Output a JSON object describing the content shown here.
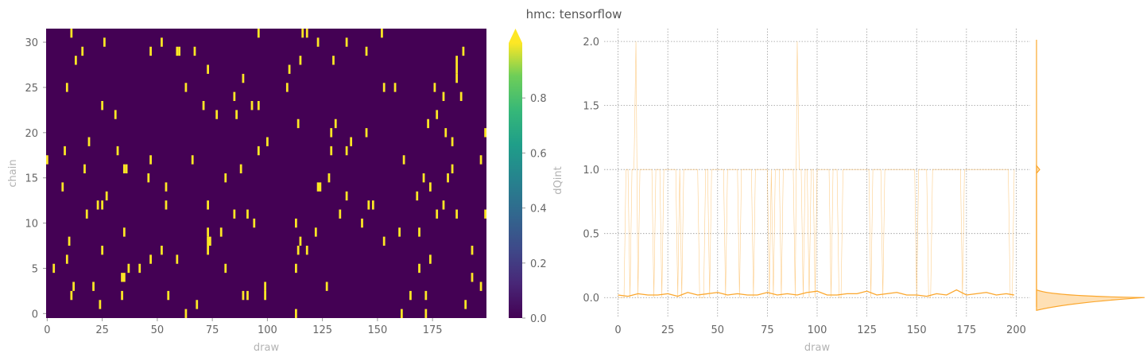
{
  "title": "hmc: tensorflow",
  "colors": {
    "viridis_low": "#440154",
    "viridis_high": "#fde725",
    "trace": "#fba62b",
    "grid": "#999999"
  },
  "chart_data": [
    {
      "type": "heatmap",
      "xlabel": "draw",
      "ylabel": "chain",
      "x_range": [
        0,
        199
      ],
      "y_range": [
        0,
        31
      ],
      "xticks": [
        "0",
        "25",
        "50",
        "75",
        "100",
        "125",
        "150",
        "175"
      ],
      "yticks": [
        "0",
        "5",
        "10",
        "15",
        "20",
        "25",
        "30"
      ],
      "colorbar": {
        "label": "dQint",
        "min": 0.0,
        "max": 1.0,
        "ticks": [
          "0.0",
          "0.2",
          "0.4",
          "0.6",
          "0.8"
        ],
        "extend": "max"
      },
      "hot_cells": [
        [
          11,
          31
        ],
        [
          96,
          31
        ],
        [
          116,
          31
        ],
        [
          118,
          31
        ],
        [
          152,
          31
        ],
        [
          26,
          30
        ],
        [
          52,
          30
        ],
        [
          123,
          30
        ],
        [
          136,
          30
        ],
        [
          16,
          29
        ],
        [
          47,
          29
        ],
        [
          59,
          29
        ],
        [
          60,
          29
        ],
        [
          67,
          29
        ],
        [
          145,
          29
        ],
        [
          189,
          29
        ],
        [
          13,
          28
        ],
        [
          115,
          28
        ],
        [
          130,
          28
        ],
        [
          186,
          28
        ],
        [
          73,
          27
        ],
        [
          110,
          27
        ],
        [
          186,
          27
        ],
        [
          89,
          26
        ],
        [
          186,
          26
        ],
        [
          9,
          25
        ],
        [
          63,
          25
        ],
        [
          109,
          25
        ],
        [
          153,
          25
        ],
        [
          158,
          25
        ],
        [
          176,
          25
        ],
        [
          85,
          24
        ],
        [
          180,
          24
        ],
        [
          188,
          24
        ],
        [
          25,
          23
        ],
        [
          71,
          23
        ],
        [
          93,
          23
        ],
        [
          96,
          23
        ],
        [
          31,
          22
        ],
        [
          77,
          22
        ],
        [
          86,
          22
        ],
        [
          177,
          22
        ],
        [
          114,
          21
        ],
        [
          131,
          21
        ],
        [
          173,
          21
        ],
        [
          129,
          20
        ],
        [
          145,
          20
        ],
        [
          181,
          20
        ],
        [
          199,
          20
        ],
        [
          19,
          19
        ],
        [
          100,
          19
        ],
        [
          138,
          19
        ],
        [
          184,
          19
        ],
        [
          8,
          18
        ],
        [
          32,
          18
        ],
        [
          96,
          18
        ],
        [
          129,
          18
        ],
        [
          136,
          18
        ],
        [
          0,
          17
        ],
        [
          47,
          17
        ],
        [
          66,
          17
        ],
        [
          162,
          17
        ],
        [
          197,
          17
        ],
        [
          17,
          16
        ],
        [
          35,
          16
        ],
        [
          36,
          16
        ],
        [
          88,
          16
        ],
        [
          184,
          16
        ],
        [
          46,
          15
        ],
        [
          81,
          15
        ],
        [
          128,
          15
        ],
        [
          171,
          15
        ],
        [
          182,
          15
        ],
        [
          7,
          14
        ],
        [
          54,
          14
        ],
        [
          123,
          14
        ],
        [
          124,
          14
        ],
        [
          174,
          14
        ],
        [
          27,
          13
        ],
        [
          136,
          13
        ],
        [
          168,
          13
        ],
        [
          23,
          12
        ],
        [
          25,
          12
        ],
        [
          54,
          12
        ],
        [
          73,
          12
        ],
        [
          146,
          12
        ],
        [
          148,
          12
        ],
        [
          180,
          12
        ],
        [
          18,
          11
        ],
        [
          85,
          11
        ],
        [
          91,
          11
        ],
        [
          133,
          11
        ],
        [
          177,
          11
        ],
        [
          186,
          11
        ],
        [
          199,
          11
        ],
        [
          94,
          10
        ],
        [
          113,
          10
        ],
        [
          143,
          10
        ],
        [
          35,
          9
        ],
        [
          73,
          9
        ],
        [
          79,
          9
        ],
        [
          122,
          9
        ],
        [
          160,
          9
        ],
        [
          169,
          9
        ],
        [
          10,
          8
        ],
        [
          73,
          8
        ],
        [
          74,
          8
        ],
        [
          115,
          8
        ],
        [
          153,
          8
        ],
        [
          25,
          7
        ],
        [
          52,
          7
        ],
        [
          73,
          7
        ],
        [
          114,
          7
        ],
        [
          118,
          7
        ],
        [
          193,
          7
        ],
        [
          9,
          6
        ],
        [
          47,
          6
        ],
        [
          59,
          6
        ],
        [
          174,
          6
        ],
        [
          3,
          5
        ],
        [
          37,
          5
        ],
        [
          42,
          5
        ],
        [
          81,
          5
        ],
        [
          113,
          5
        ],
        [
          169,
          5
        ],
        [
          34,
          4
        ],
        [
          35,
          4
        ],
        [
          193,
          4
        ],
        [
          12,
          3
        ],
        [
          21,
          3
        ],
        [
          99,
          3
        ],
        [
          127,
          3
        ],
        [
          197,
          3
        ],
        [
          11,
          2
        ],
        [
          34,
          2
        ],
        [
          55,
          2
        ],
        [
          89,
          2
        ],
        [
          91,
          2
        ],
        [
          99,
          2
        ],
        [
          165,
          2
        ],
        [
          172,
          2
        ],
        [
          24,
          1
        ],
        [
          68,
          1
        ],
        [
          190,
          1
        ],
        [
          63,
          0
        ],
        [
          113,
          0
        ],
        [
          161,
          0
        ],
        [
          172,
          0
        ]
      ]
    },
    {
      "type": "line",
      "xlabel": "draw",
      "ylabel": "",
      "xlim": [
        -7,
        207
      ],
      "ylim": [
        -0.16,
        2.1
      ],
      "xticks": [
        "0",
        "25",
        "50",
        "75",
        "100",
        "125",
        "150",
        "175",
        "200"
      ],
      "yticks": [
        "0.0",
        "0.5",
        "1.0",
        "1.5",
        "2.0"
      ],
      "grid": true,
      "series": [
        {
          "style": "thin-transparent",
          "spikes_to_one": [
            4,
            5,
            7,
            8,
            9,
            11,
            12,
            13,
            14,
            15,
            16,
            17,
            19,
            20,
            21,
            23,
            24,
            25,
            26,
            27,
            28,
            29,
            31,
            33,
            34,
            35,
            36,
            37,
            38,
            39,
            40,
            44,
            45,
            47,
            48,
            49,
            50,
            51,
            52,
            53,
            55,
            56,
            57,
            58,
            59,
            60,
            62,
            63,
            64,
            65,
            66,
            67,
            69,
            70,
            71,
            72,
            73,
            74,
            75,
            77,
            79,
            80,
            81,
            83,
            84,
            85,
            86,
            87,
            88,
            91,
            92,
            94,
            95,
            97,
            98,
            100,
            101,
            102,
            103,
            104,
            105,
            106,
            108,
            109,
            110,
            113,
            114,
            115,
            116,
            117,
            118,
            119,
            120,
            121,
            122,
            123,
            124,
            125,
            126,
            128,
            129,
            130,
            131,
            132,
            134,
            135,
            136,
            137,
            138,
            139,
            140,
            141,
            142,
            143,
            144,
            145,
            146,
            147,
            148,
            149,
            151,
            152,
            153,
            154,
            155,
            158,
            159,
            160,
            161,
            162,
            163,
            164,
            165,
            166,
            167,
            168,
            169,
            170,
            171,
            172,
            174,
            175,
            176,
            177,
            178,
            179,
            180,
            181,
            182,
            183,
            184,
            185,
            186,
            187,
            188,
            189,
            190,
            191,
            192,
            193,
            194,
            195,
            196,
            199
          ],
          "spikes_to_two": [
            9,
            90
          ]
        },
        {
          "style": "mean",
          "x": [
            0,
            5,
            10,
            15,
            20,
            25,
            30,
            35,
            40,
            45,
            50,
            55,
            60,
            65,
            70,
            75,
            80,
            85,
            90,
            95,
            100,
            105,
            110,
            115,
            120,
            125,
            130,
            135,
            140,
            145,
            150,
            155,
            160,
            165,
            170,
            175,
            180,
            185,
            190,
            195,
            199
          ],
          "y": [
            0.02,
            0.01,
            0.03,
            0.02,
            0.02,
            0.03,
            0.01,
            0.04,
            0.02,
            0.03,
            0.04,
            0.02,
            0.03,
            0.02,
            0.02,
            0.04,
            0.02,
            0.03,
            0.02,
            0.04,
            0.05,
            0.02,
            0.02,
            0.03,
            0.03,
            0.05,
            0.02,
            0.03,
            0.04,
            0.02,
            0.02,
            0.01,
            0.03,
            0.02,
            0.06,
            0.02,
            0.03,
            0.04,
            0.02,
            0.03,
            0.02
          ]
        }
      ],
      "marginal_kde": {
        "orientation": "vertical",
        "peaks": [
          0.0,
          1.0
        ],
        "main_peak": 0.0
      }
    }
  ]
}
